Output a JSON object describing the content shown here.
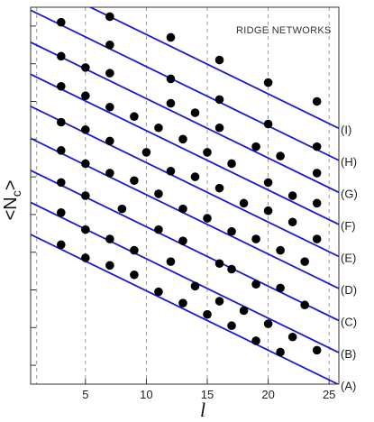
{
  "chart_data": {
    "type": "scatter",
    "title": "",
    "annotation": "RIDGE NETWORKS",
    "xlabel": "l",
    "ylabel_main": "<N",
    "ylabel_sub": "c",
    "ylabel_end": ">",
    "xlim": [
      0.5,
      25.8
    ],
    "ylim": [
      0,
      10
    ],
    "xticks": [
      5,
      10,
      15,
      20,
      25
    ],
    "grid": "vertical dashed",
    "colors": {
      "line": "#1a1ad6",
      "point": "#000000",
      "grid": "#808080",
      "frame": "#333333"
    },
    "series": [
      {
        "name": "(A)",
        "intercept": 4.05,
        "slope": -0.1575,
        "points": [
          [
            3,
            3.7
          ],
          [
            5,
            3.35
          ],
          [
            7,
            3.15
          ],
          [
            9,
            2.9
          ],
          [
            11,
            2.45
          ],
          [
            13,
            2.15
          ],
          [
            15,
            1.85
          ],
          [
            17,
            1.55
          ],
          [
            19,
            1.15
          ],
          [
            21,
            0.85
          ]
        ]
      },
      {
        "name": "(B)",
        "intercept": 4.9,
        "slope": -0.1575,
        "points": [
          [
            3,
            4.55
          ],
          [
            5,
            4.1
          ],
          [
            7,
            3.85
          ],
          [
            9,
            3.55
          ],
          [
            12,
            3.25
          ],
          [
            14,
            2.6
          ],
          [
            16,
            2.2
          ],
          [
            18,
            1.95
          ],
          [
            20,
            1.6
          ],
          [
            22,
            1.25
          ],
          [
            24,
            0.9
          ]
        ]
      },
      {
        "name": "(C)",
        "intercept": 5.75,
        "slope": -0.1575,
        "points": [
          [
            3,
            5.35
          ],
          [
            5,
            5.0
          ],
          [
            8,
            4.65
          ],
          [
            11,
            4.1
          ],
          [
            13,
            3.8
          ],
          [
            16,
            3.2
          ],
          [
            17,
            3.05
          ],
          [
            19,
            2.65
          ],
          [
            21,
            2.55
          ],
          [
            23,
            2.1
          ]
        ]
      },
      {
        "name": "(D)",
        "intercept": 6.6,
        "slope": -0.1575,
        "points": [
          [
            3,
            6.2
          ],
          [
            5,
            5.85
          ],
          [
            7,
            5.6
          ],
          [
            9,
            5.4
          ],
          [
            11,
            5.05
          ],
          [
            13,
            4.65
          ],
          [
            15,
            4.4
          ],
          [
            17,
            4.05
          ],
          [
            19,
            3.85
          ],
          [
            21,
            3.55
          ],
          [
            23,
            3.25
          ]
        ]
      },
      {
        "name": "(E)",
        "intercept": 7.45,
        "slope": -0.1575,
        "points": [
          [
            3,
            6.95
          ],
          [
            5,
            6.75
          ],
          [
            7,
            6.45
          ],
          [
            10,
            6.15
          ],
          [
            12,
            5.65
          ],
          [
            14,
            5.5
          ],
          [
            16,
            5.2
          ],
          [
            18,
            4.8
          ],
          [
            20,
            4.6
          ],
          [
            22,
            4.3
          ],
          [
            24,
            3.85
          ]
        ]
      },
      {
        "name": "(F)",
        "intercept": 8.3,
        "slope": -0.1575,
        "points": [
          [
            3,
            7.9
          ],
          [
            5,
            7.65
          ],
          [
            7,
            7.35
          ],
          [
            9,
            7.1
          ],
          [
            11,
            6.8
          ],
          [
            13,
            6.5
          ],
          [
            15,
            6.15
          ],
          [
            17,
            5.85
          ],
          [
            20,
            5.35
          ],
          [
            22,
            5.0
          ],
          [
            24,
            4.8
          ]
        ]
      },
      {
        "name": "(G)",
        "intercept": 9.15,
        "slope": -0.1575,
        "points": [
          [
            3,
            8.7
          ],
          [
            5,
            8.4
          ],
          [
            7,
            8.25
          ],
          [
            12,
            7.45
          ],
          [
            14,
            7.2
          ],
          [
            16,
            6.8
          ],
          [
            19,
            6.3
          ],
          [
            21,
            6.05
          ],
          [
            24,
            5.6
          ]
        ]
      },
      {
        "name": "(H)",
        "intercept": 10.0,
        "slope": -0.1575,
        "points": [
          [
            3,
            9.6
          ],
          [
            7,
            9.0
          ],
          [
            12,
            8.1
          ],
          [
            16,
            7.55
          ],
          [
            20,
            6.9
          ],
          [
            24,
            6.3
          ]
        ]
      },
      {
        "name": "(I)",
        "intercept": 10.85,
        "slope": -0.1575,
        "points": [
          [
            3,
            10.4
          ],
          [
            7,
            9.75
          ],
          [
            12,
            9.2
          ],
          [
            16,
            8.6
          ],
          [
            20,
            8.0
          ],
          [
            24,
            7.5
          ]
        ]
      }
    ]
  }
}
